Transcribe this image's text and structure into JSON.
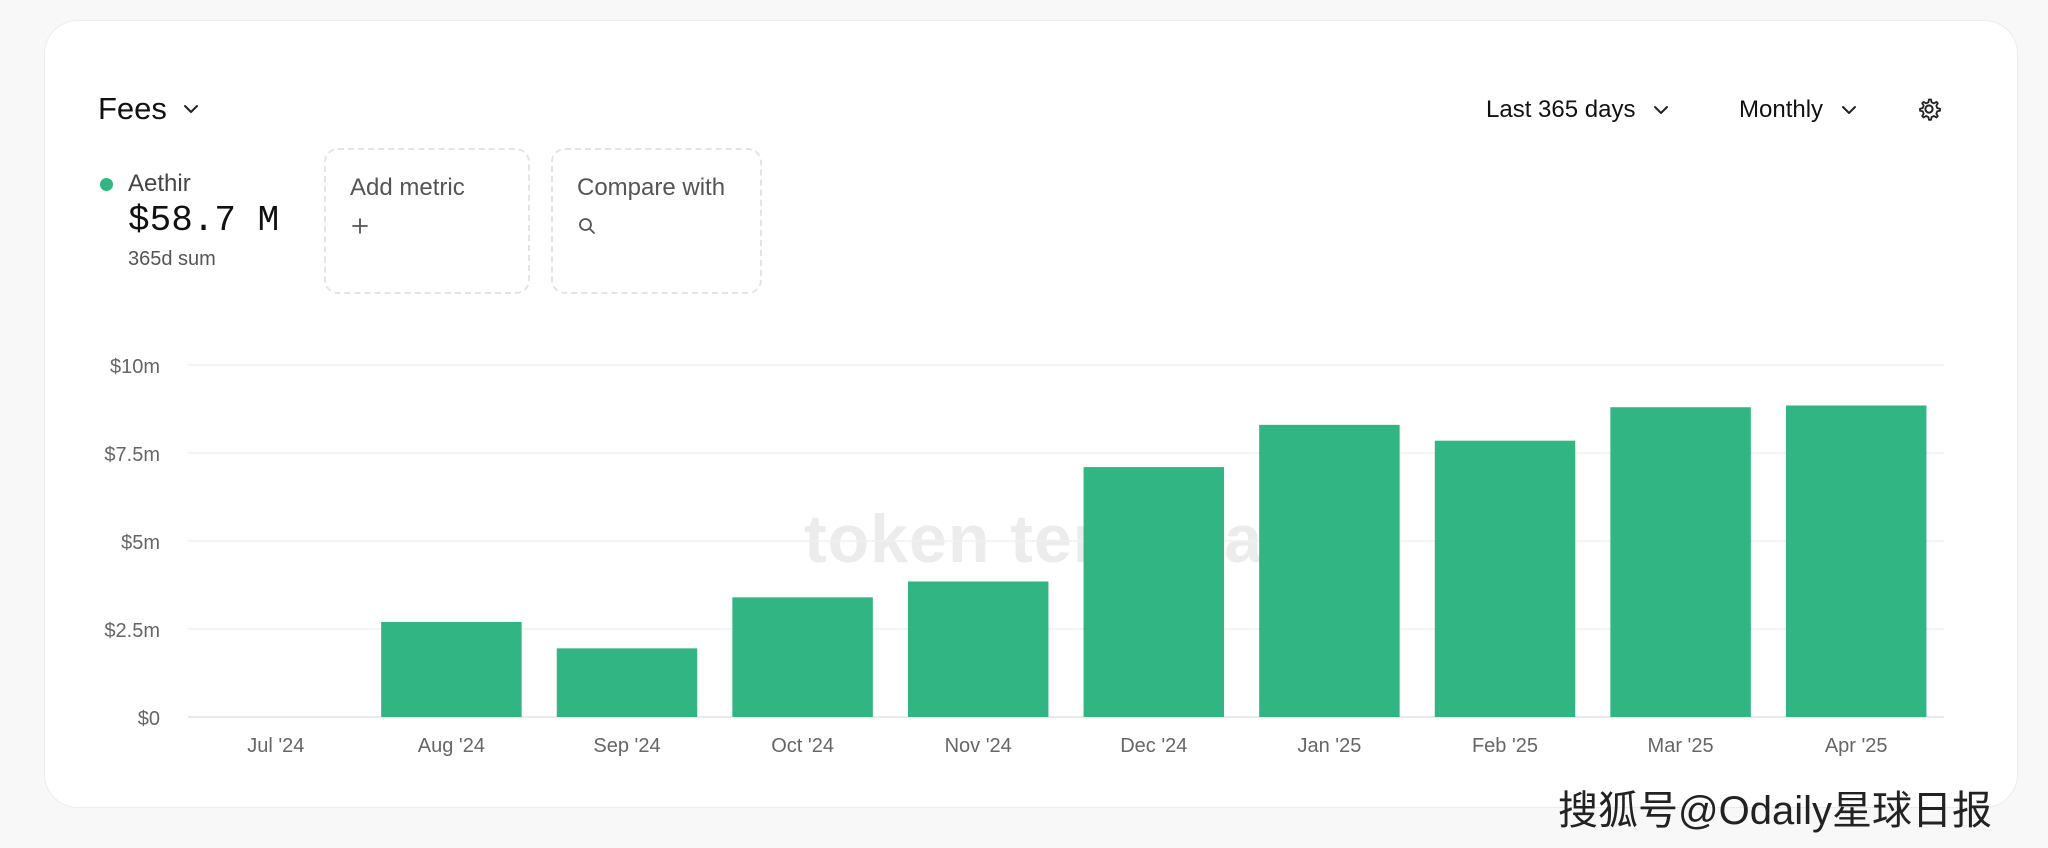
{
  "header": {
    "metric_title": "Fees",
    "range_label": "Last 365 days",
    "granularity_label": "Monthly",
    "settings_icon": "gear-icon"
  },
  "series_summary": {
    "name": "Aethir",
    "value": "$58.7 M",
    "sub": "365d sum",
    "color": "#31b683"
  },
  "actions": {
    "add_metric_label": "Add metric",
    "add_metric_icon": "plus-icon",
    "compare_label": "Compare with",
    "compare_icon": "search-icon"
  },
  "watermark": "token terminal_",
  "corner_watermark": "搜狐号@Odaily星球日报",
  "chart_data": {
    "type": "bar",
    "categories": [
      "Jul '24",
      "Aug '24",
      "Sep '24",
      "Oct '24",
      "Nov '24",
      "Dec '24",
      "Jan '25",
      "Feb '25",
      "Mar '25",
      "Apr '25"
    ],
    "series": [
      {
        "name": "Aethir",
        "values": [
          0,
          2.7,
          1.95,
          3.4,
          3.85,
          7.1,
          8.3,
          7.85,
          8.8,
          8.85
        ]
      }
    ],
    "ylim": [
      0,
      10
    ],
    "yticks": [
      0,
      2.5,
      5,
      7.5,
      10
    ],
    "ytick_labels": [
      "$0",
      "$2.5m",
      "$5m",
      "$7.5m",
      "$10m"
    ],
    "color": "#31b683",
    "grid": true
  }
}
